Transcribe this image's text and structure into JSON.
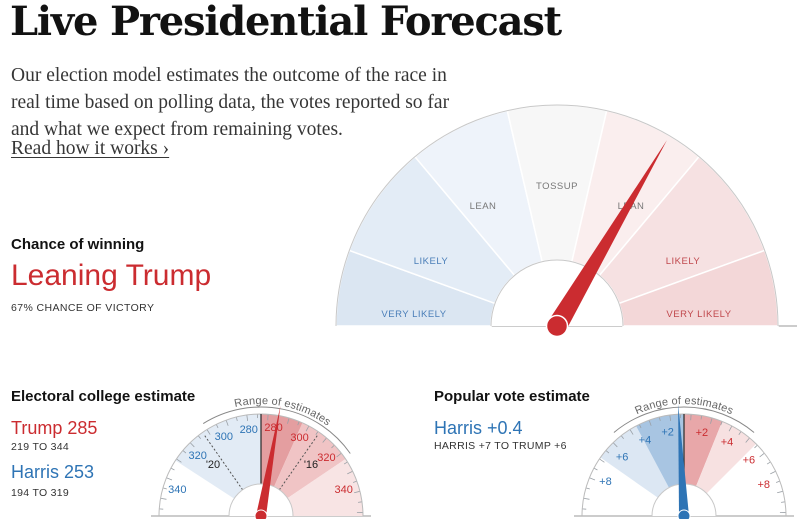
{
  "header": {
    "title": "Live Presidential Forecast",
    "intro": "Our election model estimates the outcome of the race in real time based on polling data, the votes reported so far and what we expect from remaining votes.",
    "link": "Read how it works ›"
  },
  "chance": {
    "heading": "Chance of winning",
    "status": "Leaning Trump",
    "probability": "67% CHANCE OF VICTORY",
    "needle_fraction": 0.67,
    "zones": [
      "VERY LIKELY",
      "LIKELY",
      "LEAN",
      "TOSSUP",
      "LEAN",
      "LIKELY",
      "VERY LIKELY"
    ]
  },
  "electoral": {
    "heading": "Electoral college estimate",
    "trump": "Trump 285",
    "trump_range": "219 TO 344",
    "harris": "Harris 253",
    "harris_range": "194 TO 319",
    "range_label": "Range of estimates",
    "ticks_left": [
      "340",
      "320",
      "300",
      "280"
    ],
    "ticks_right": [
      "280",
      "300",
      "320",
      "340"
    ],
    "markers": [
      "'20",
      "'16"
    ]
  },
  "popular": {
    "heading": "Popular vote estimate",
    "value": "Harris +0.4",
    "range": "HARRIS +7 TO TRUMP +6",
    "range_label": "Range of estimates",
    "ticks_left": [
      "+8",
      "+6",
      "+4",
      "+2"
    ],
    "ticks_right": [
      "+2",
      "+4",
      "+6",
      "+8"
    ]
  },
  "colors": {
    "red": "#cb2c30",
    "blue": "#2e74b5",
    "trump_text": "#cb2c30",
    "harris_text": "#2e74b5"
  }
}
